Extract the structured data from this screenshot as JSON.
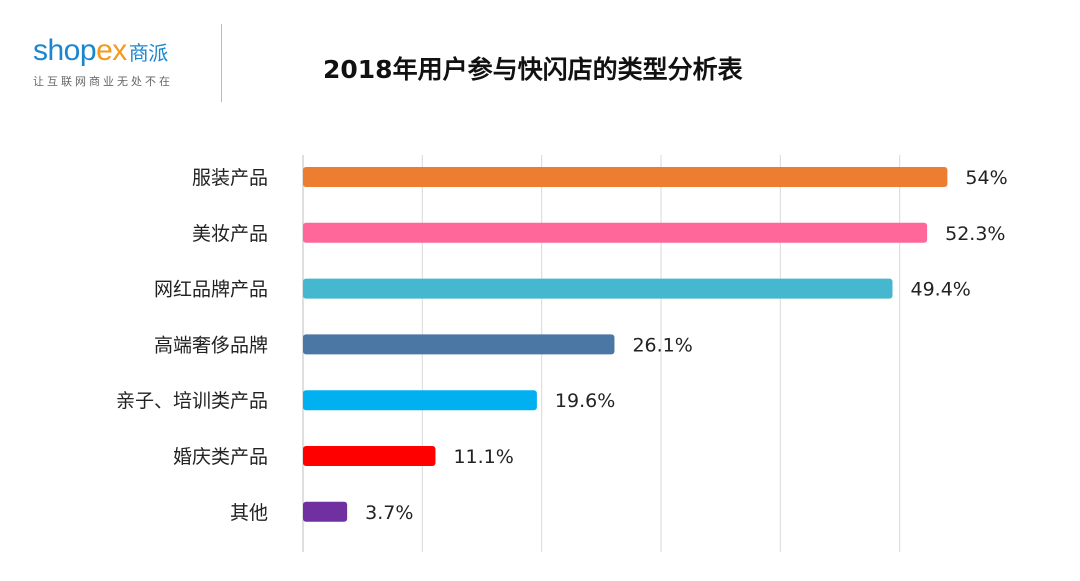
{
  "logo": {
    "brand_a": "shop",
    "brand_b": "ex",
    "brand_cn": "商派",
    "tagline": "让互联网商业无处不在"
  },
  "chart_data": {
    "type": "bar",
    "orientation": "horizontal",
    "title": "2018年用户参与快闪店的类型分析表",
    "categories": [
      "服装产品",
      "美妆产品",
      "网红品牌产品",
      "高端奢侈品牌",
      "亲子、培训类产品",
      "婚庆类产品",
      "其他"
    ],
    "values": [
      54,
      52.3,
      49.4,
      26.1,
      19.6,
      11.1,
      3.7
    ],
    "labels": [
      "54%",
      "52.3%",
      "49.4%",
      "26.1%",
      "19.6%",
      "11.1%",
      "3.7%"
    ],
    "colors": [
      "#ED7D31",
      "#FF6699",
      "#45B8D0",
      "#4A77A3",
      "#00B0F0",
      "#FF0000",
      "#7030A0"
    ],
    "xlim": [
      0,
      60
    ],
    "grid": true,
    "xlabel": "",
    "ylabel": ""
  }
}
